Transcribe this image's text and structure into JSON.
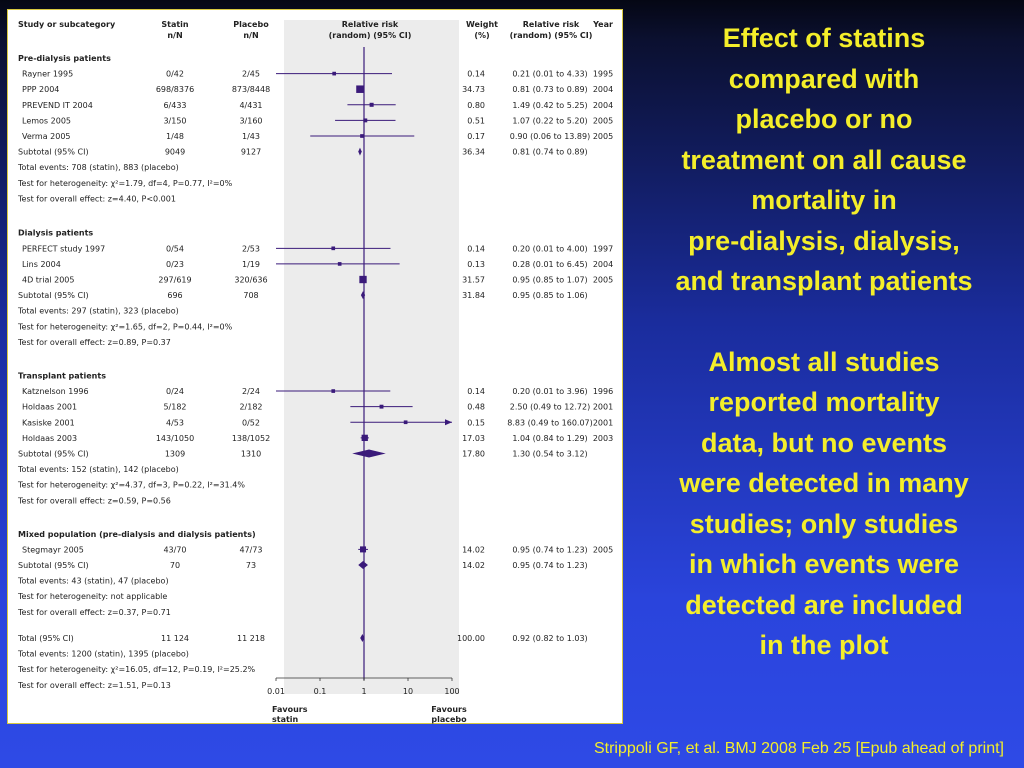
{
  "headers": {
    "study": "Study or subcategory",
    "statin": [
      "Statin",
      "n/N"
    ],
    "placebo": [
      "Placebo",
      "n/N"
    ],
    "rr": [
      "Relative risk",
      "(random) (95% CI)"
    ],
    "weight": [
      "Weight",
      "(%)"
    ],
    "rr_text": [
      "Relative risk",
      "(random) (95% CI)"
    ],
    "year": "Year"
  },
  "sections": [
    {
      "title": "Pre-dialysis patients",
      "rows": [
        {
          "study": "Rayner 1995",
          "statin": "0/42",
          "placebo": "2/45",
          "weight": "0.14",
          "ci": "0.21 (0.01 to 4.33)",
          "year": "1995",
          "rr": 0.21,
          "lo": 0.01,
          "hi": 4.33,
          "w": 0.14
        },
        {
          "study": "PPP 2004",
          "statin": "698/8376",
          "placebo": "873/8448",
          "weight": "34.73",
          "ci": "0.81 (0.73 to 0.89)",
          "year": "2004",
          "rr": 0.81,
          "lo": 0.73,
          "hi": 0.89,
          "w": 34.73
        },
        {
          "study": "PREVEND IT 2004",
          "statin": "6/433",
          "placebo": "4/431",
          "weight": "0.80",
          "ci": "1.49 (0.42 to 5.25)",
          "year": "2004",
          "rr": 1.49,
          "lo": 0.42,
          "hi": 5.25,
          "w": 0.8
        },
        {
          "study": "Lemos 2005",
          "statin": "3/150",
          "placebo": "3/160",
          "weight": "0.51",
          "ci": "1.07 (0.22 to 5.20)",
          "year": "2005",
          "rr": 1.07,
          "lo": 0.22,
          "hi": 5.2,
          "w": 0.51
        },
        {
          "study": "Verma 2005",
          "statin": "1/48",
          "placebo": "1/43",
          "weight": "0.17",
          "ci": "0.90 (0.06 to 13.89)",
          "year": "2005",
          "rr": 0.9,
          "lo": 0.06,
          "hi": 13.89,
          "w": 0.17
        }
      ],
      "subtotal": {
        "label": "Subtotal (95% CI)",
        "statin": "9049",
        "placebo": "9127",
        "weight": "36.34",
        "ci": "0.81 (0.74 to 0.89)",
        "rr": 0.81,
        "lo": 0.74,
        "hi": 0.89
      },
      "stats": [
        "Total events: 708 (statin), 883 (placebo)",
        "Test for heterogeneity: χ²=1.79, df=4, P=0.77, I²=0%",
        "Test for overall effect: z=4.40, P<0.001"
      ]
    },
    {
      "title": "Dialysis patients",
      "rows": [
        {
          "study": "PERFECT study 1997",
          "statin": "0/54",
          "placebo": "2/53",
          "weight": "0.14",
          "ci": "0.20 (0.01 to 4.00)",
          "year": "1997",
          "rr": 0.2,
          "lo": 0.01,
          "hi": 4.0,
          "w": 0.14
        },
        {
          "study": "Lins 2004",
          "statin": "0/23",
          "placebo": "1/19",
          "weight": "0.13",
          "ci": "0.28 (0.01 to 6.45)",
          "year": "2004",
          "rr": 0.28,
          "lo": 0.01,
          "hi": 6.45,
          "w": 0.13
        },
        {
          "study": "4D trial 2005",
          "statin": "297/619",
          "placebo": "320/636",
          "weight": "31.57",
          "ci": "0.95 (0.85 to 1.07)",
          "year": "2005",
          "rr": 0.95,
          "lo": 0.85,
          "hi": 1.07,
          "w": 31.57
        }
      ],
      "subtotal": {
        "label": "Subtotal (95% CI)",
        "statin": "696",
        "placebo": "708",
        "weight": "31.84",
        "ci": "0.95 (0.85 to 1.06)",
        "rr": 0.95,
        "lo": 0.85,
        "hi": 1.06
      },
      "stats": [
        "Total events: 297 (statin), 323 (placebo)",
        "Test for heterogeneity: χ²=1.65, df=2, P=0.44, I²=0%",
        "Test for overall effect: z=0.89, P=0.37"
      ]
    },
    {
      "title": "Transplant patients",
      "rows": [
        {
          "study": "Katznelson 1996",
          "statin": "0/24",
          "placebo": "2/24",
          "weight": "0.14",
          "ci": "0.20 (0.01 to 3.96)",
          "year": "1996",
          "rr": 0.2,
          "lo": 0.01,
          "hi": 3.96,
          "w": 0.14
        },
        {
          "study": "Holdaas 2001",
          "statin": "5/182",
          "placebo": "2/182",
          "weight": "0.48",
          "ci": "2.50 (0.49 to 12.72)",
          "year": "2001",
          "rr": 2.5,
          "lo": 0.49,
          "hi": 12.72,
          "w": 0.48
        },
        {
          "study": "Kasiske 2001",
          "statin": "4/53",
          "placebo": "0/52",
          "weight": "0.15",
          "ci": "8.83 (0.49 to 160.07)",
          "year": "2001",
          "rr": 8.83,
          "lo": 0.49,
          "hi": 160.07,
          "w": 0.15
        },
        {
          "study": "Holdaas 2003",
          "statin": "143/1050",
          "placebo": "138/1052",
          "weight": "17.03",
          "ci": "1.04 (0.84 to 1.29)",
          "year": "2003",
          "rr": 1.04,
          "lo": 0.84,
          "hi": 1.29,
          "w": 17.03
        }
      ],
      "subtotal": {
        "label": "Subtotal (95% CI)",
        "statin": "1309",
        "placebo": "1310",
        "weight": "17.80",
        "ci": "1.30 (0.54 to 3.12)",
        "rr": 1.3,
        "lo": 0.54,
        "hi": 3.12
      },
      "stats": [
        "Total events: 152 (statin), 142 (placebo)",
        "Test for heterogeneity: χ²=4.37, df=3, P=0.22, I²=31.4%",
        "Test for overall effect: z=0.59, P=0.56"
      ]
    },
    {
      "title": "Mixed population (pre-dialysis and dialysis patients)",
      "rows": [
        {
          "study": "Stegmayr 2005",
          "statin": "43/70",
          "placebo": "47/73",
          "weight": "14.02",
          "ci": "0.95 (0.74 to 1.23)",
          "year": "2005",
          "rr": 0.95,
          "lo": 0.74,
          "hi": 1.23,
          "w": 14.02
        }
      ],
      "subtotal": {
        "label": "Subtotal (95% CI)",
        "statin": "70",
        "placebo": "73",
        "weight": "14.02",
        "ci": "0.95 (0.74 to 1.23)",
        "rr": 0.95,
        "lo": 0.74,
        "hi": 1.23
      },
      "stats": [
        "Total events: 43 (statin), 47 (placebo)",
        "Test for heterogeneity: not applicable",
        "Test for overall effect: z=0.37, P=0.71"
      ]
    }
  ],
  "total": {
    "label": "Total (95% CI)",
    "statin": "11 124",
    "placebo": "11 218",
    "weight": "100.00",
    "ci": "0.92 (0.82 to 1.03)",
    "rr": 0.92,
    "lo": 0.82,
    "hi": 1.03,
    "stats": [
      "Total events: 1200 (statin), 1395 (placebo)",
      "Test for heterogeneity: χ²=16.05, df=12, P=0.19, I²=25.2%",
      "Test for overall effect: z=1.51, P=0.13"
    ]
  },
  "axis": {
    "ticks": [
      "0.01",
      "0.1",
      "1",
      "10",
      "100"
    ],
    "favours_left": [
      "Favours",
      "statin"
    ],
    "favours_right": [
      "Favours",
      "placebo"
    ]
  },
  "colors": {
    "marker": "#3a1a7a",
    "panel_bg": "#ececec",
    "text_yellow": "#f4ee2a"
  },
  "chart_data": {
    "type": "forest",
    "scale": "log",
    "xlim": [
      0.01,
      100
    ],
    "reference_line": 1
  },
  "side_text": {
    "para1": [
      "Effect of statins",
      "compared with",
      "placebo or no",
      "treatment on all cause",
      "mortality in",
      "pre-dialysis, dialysis,",
      "and transplant patients"
    ],
    "para2": [
      "Almost all studies",
      "reported mortality",
      "data, but no events",
      "were detected in many",
      "studies; only studies",
      "in which events were",
      "detected are included",
      "in the plot"
    ]
  },
  "citation": "Strippoli GF, et al. BMJ 2008 Feb 25 [Epub ahead of print]"
}
